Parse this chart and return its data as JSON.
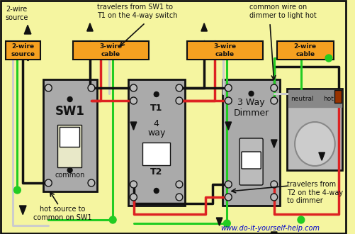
{
  "bg_color": "#f5f5a0",
  "website": "www.do-it-yourself-help.com",
  "labels": {
    "source": "2-wire\nsource",
    "travelers_sw1": "travelers from SW1 to\nT1 on the 4-way switch",
    "cable1": "3-wire\ncable",
    "cable2": "3-wire\ncable",
    "cable3": "2-wire\ncable",
    "common_wire": "common wire on\ndimmer to light hot",
    "hot_source": "hot source to\ncommon on SW1",
    "travelers_t2": "travelers from\nT2 on the 4-way\nto dimmer",
    "sw1_label": "SW1",
    "sw1_common": "common",
    "neutral": "neutral",
    "hot": "hot"
  },
  "colors": {
    "orange_cable": "#f5a020",
    "black": "#111111",
    "white_wire": "#cccccc",
    "green": "#22cc22",
    "red": "#dd2222",
    "gray_switch": "#aaaaaa",
    "light_gray": "#bbbbbb",
    "blue_text": "#0000cc",
    "dark_gray": "#888888"
  }
}
